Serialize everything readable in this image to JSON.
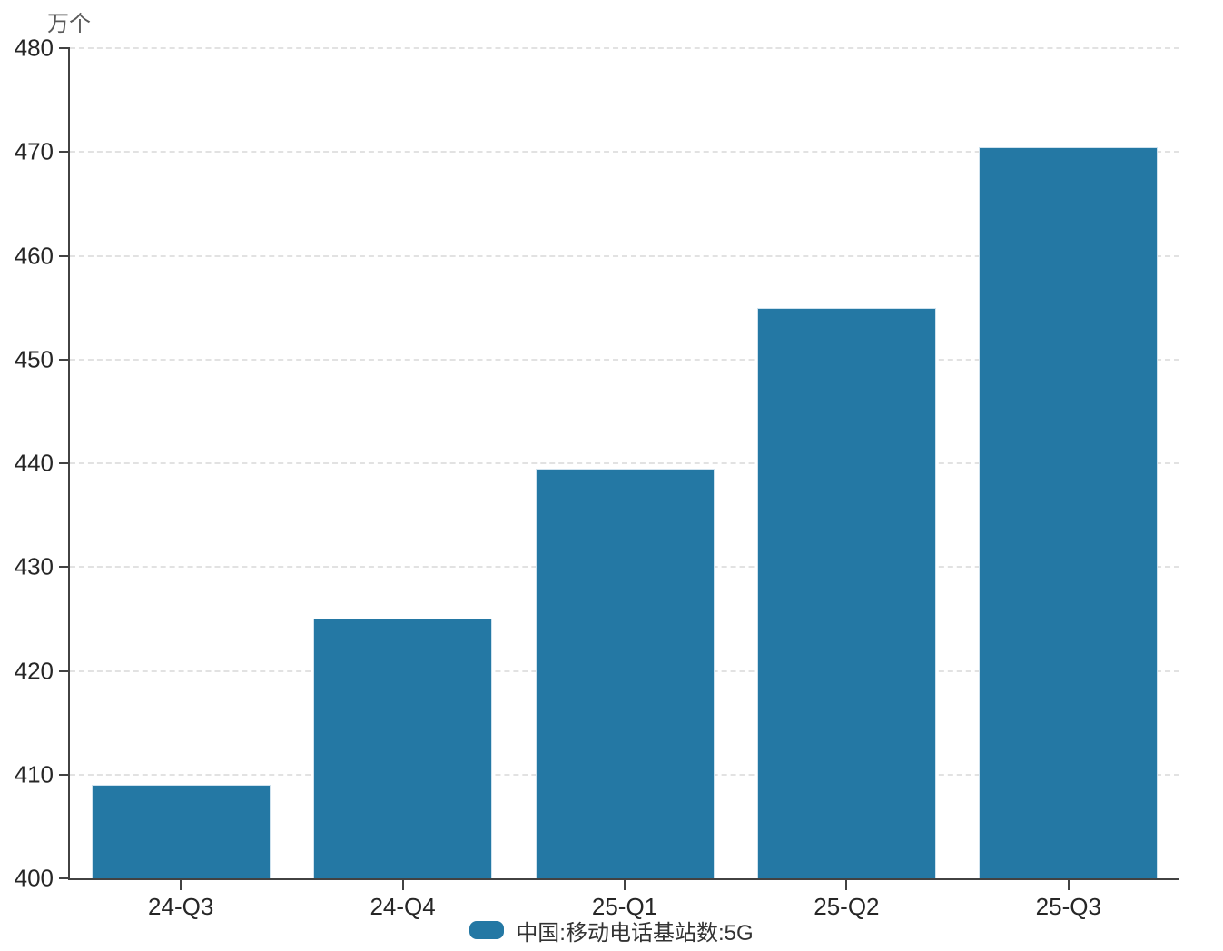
{
  "chart_data": {
    "type": "bar",
    "title": "",
    "unit_label": "万个",
    "categories": [
      "24-Q3",
      "24-Q4",
      "25-Q1",
      "25-Q2",
      "25-Q3"
    ],
    "values": [
      409,
      425,
      439.5,
      455,
      470.5
    ],
    "series": [
      {
        "name": "中国:移动电话基站数:5G",
        "values": [
          409,
          425,
          439.5,
          455,
          470.5
        ]
      }
    ],
    "xlabel": "",
    "ylabel": "万个",
    "ylim": [
      400,
      480
    ],
    "yticks": [
      400,
      410,
      420,
      430,
      440,
      450,
      460,
      470,
      480
    ],
    "grid": "horizontal-dashed",
    "legend_position": "bottom-center",
    "colors": {
      "bar": "#2478a4",
      "bar_edge": "#cfe2ee",
      "grid": "#e2e2e2",
      "axis": "#424242",
      "tick_text": "#262626",
      "unit_text": "#595959",
      "legend_text": "#333333"
    }
  },
  "legend": {
    "label": "中国:移动电话基站数:5G"
  }
}
